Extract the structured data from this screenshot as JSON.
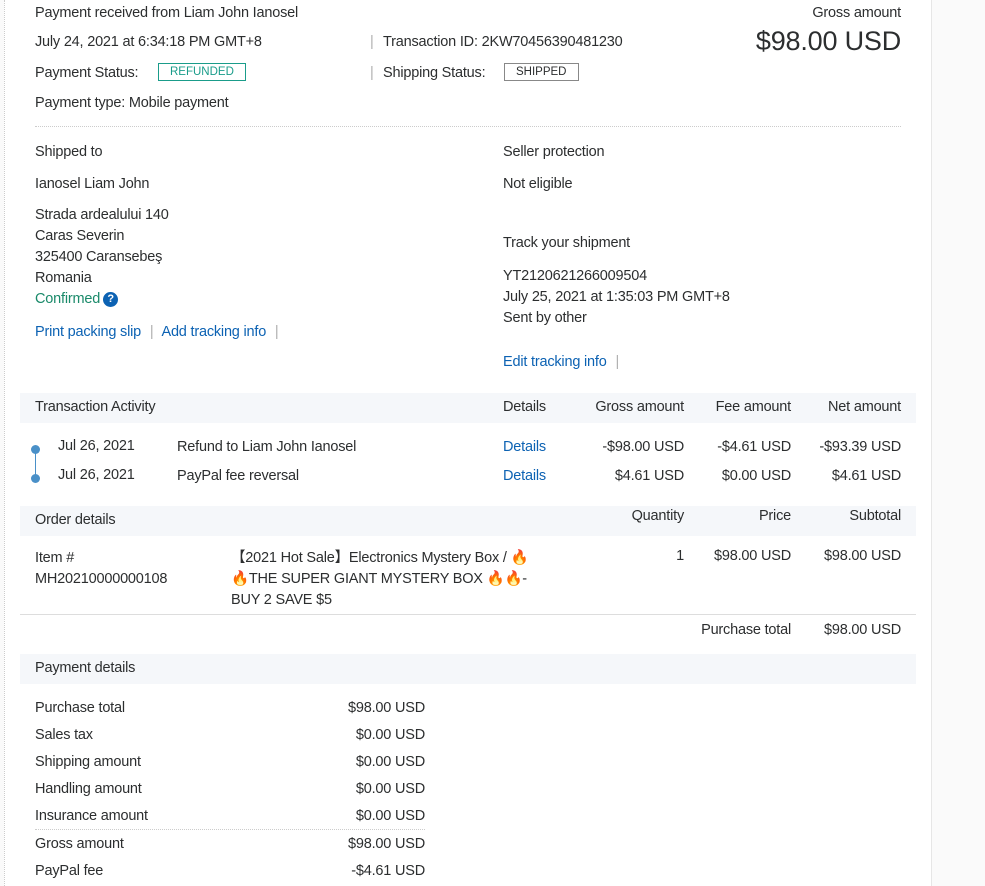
{
  "header": {
    "title": "Payment received from Liam John Ianosel",
    "date": "July 24, 2021 at 6:34:18 PM GMT+8",
    "transaction_id": "Transaction ID: 2KW70456390481230",
    "payment_status_label": "Payment Status:",
    "payment_status": "REFUNDED",
    "shipping_status_label": "Shipping Status:",
    "shipping_status": "SHIPPED",
    "payment_type": "Payment type: Mobile payment",
    "gross_label": "Gross amount",
    "gross_amount": "$98.00 USD"
  },
  "shipping": {
    "label": "Shipped to",
    "name": "Ianosel Liam John",
    "address": [
      "Strada ardealului 140",
      "Caras Severin",
      "325400 Caransebeş",
      "Romania"
    ],
    "confirmed": "Confirmed",
    "print_slip": "Print packing slip",
    "add_tracking": "Add tracking info"
  },
  "seller": {
    "label": "Seller protection",
    "value": "Not eligible",
    "track_label": "Track your shipment",
    "tracking_number": "YT2120621266009504",
    "tracking_date": "July 25, 2021 at 1:35:03 PM GMT+8",
    "sent_by": "Sent by other",
    "edit_tracking": "Edit tracking info"
  },
  "activity": {
    "headers": [
      "Transaction Activity",
      "Details",
      "Gross amount",
      "Fee amount",
      "Net amount"
    ],
    "rows": [
      {
        "date": "Jul 26, 2021",
        "desc": "Refund to Liam John Ianosel",
        "details": "Details",
        "gross": "-$98.00 USD",
        "fee": "-$4.61 USD",
        "net": "-$93.39 USD"
      },
      {
        "date": "Jul 26, 2021",
        "desc": "PayPal fee reversal",
        "details": "Details",
        "gross": "$4.61 USD",
        "fee": "$0.00 USD",
        "net": "$4.61 USD"
      }
    ]
  },
  "order": {
    "headers": [
      "Order details",
      "Quantity",
      "Price",
      "Subtotal"
    ],
    "item_label": "Item #",
    "item_number": "MH20210000000108",
    "item_lines": [
      "【2021 Hot Sale】Electronics Mystery Box / 🔥",
      "🔥THE SUPER GIANT MYSTERY BOX 🔥🔥-",
      "BUY 2 SAVE $5"
    ],
    "quantity": "1",
    "price": "$98.00 USD",
    "subtotal": "$98.00 USD",
    "purchase_total_label": "Purchase total",
    "purchase_total": "$98.00 USD"
  },
  "payment": {
    "title": "Payment details",
    "rows": [
      {
        "label": "Purchase total",
        "value": "$98.00 USD"
      },
      {
        "label": "Sales tax",
        "value": "$0.00 USD"
      },
      {
        "label": "Shipping amount",
        "value": "$0.00 USD"
      },
      {
        "label": "Handling amount",
        "value": "$0.00 USD"
      },
      {
        "label": "Insurance amount",
        "value": "$0.00 USD"
      },
      {
        "label": "Gross amount",
        "value": "$98.00 USD"
      },
      {
        "label": "PayPal fee",
        "value": "-$4.61 USD"
      }
    ]
  },
  "colors": {
    "link": "#0c62b3",
    "refunded": "#1a9c8a",
    "timeline": "#4a90c8"
  }
}
